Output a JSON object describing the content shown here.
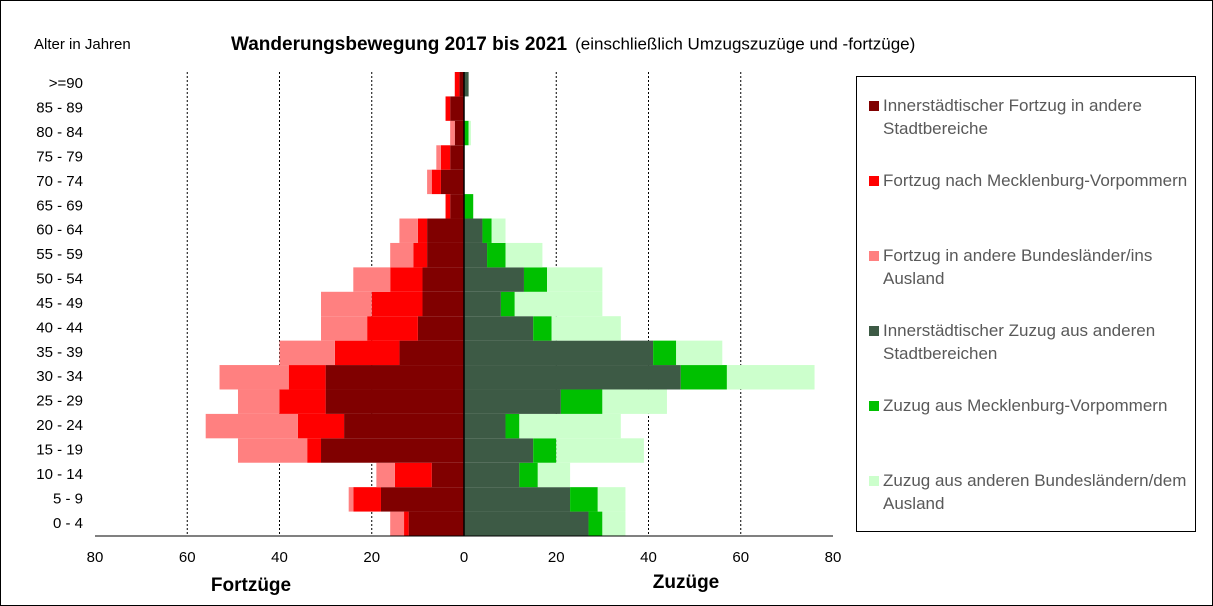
{
  "chart_data": {
    "type": "bar",
    "orientation": "horizontal",
    "stacked": true,
    "title": "Wanderungsbewegung 2017 bis 2021",
    "subtitle": "(einschließlich Umzugszuzüge und -fortzüge)",
    "y_label": "Alter in Jahren",
    "x_label_left": "Fortzüge",
    "x_label_right": "Zuzüge",
    "categories": [
      "0 - 4",
      "5 - 9",
      "10 - 14",
      "15 - 19",
      "20 - 24",
      "25 - 29",
      "30 - 34",
      "35 - 39",
      "40 - 44",
      "45 - 49",
      "50 - 54",
      "55 - 59",
      "60 - 64",
      "65 - 69",
      "70 - 74",
      "75 - 79",
      "80 - 84",
      "85 - 89",
      ">=90"
    ],
    "series": [
      {
        "name": "Innerstädtischer Fortzug in andere Stadtbereiche",
        "color": "#800000",
        "values": [
          -12,
          -18,
          -7,
          -31,
          -26,
          -30,
          -30,
          -14,
          -10,
          -9,
          -9,
          -8,
          -8,
          -3,
          -5,
          -3,
          -2,
          -3,
          -1
        ]
      },
      {
        "name": "Fortzug nach Mecklenburg-Vorpommern",
        "color": "#ff0000",
        "values": [
          -1,
          -6,
          -8,
          -3,
          -10,
          -10,
          -8,
          -14,
          -11,
          -11,
          -7,
          -3,
          -2,
          -1,
          -2,
          -2,
          0,
          -1,
          -1
        ]
      },
      {
        "name": "Fortzug in andere Bundesländer/ins Ausland",
        "color": "#ff8080",
        "values": [
          -3,
          -1,
          -4,
          -15,
          -20,
          -9,
          -15,
          -12,
          -10,
          -11,
          -8,
          -5,
          -4,
          0,
          -1,
          -1,
          -1,
          0,
          0
        ]
      },
      {
        "name": "Innerstädtischer Zuzug aus anderen Stadtbereichen",
        "color": "#3d5a45",
        "values": [
          27,
          23,
          12,
          15,
          9,
          21,
          47,
          41,
          15,
          8,
          13,
          5,
          4,
          0,
          0,
          0,
          0,
          0,
          1
        ]
      },
      {
        "name": "Zuzug aus Mecklenburg-Vorpommern",
        "color": "#00c000",
        "values": [
          3,
          6,
          4,
          5,
          3,
          9,
          10,
          5,
          4,
          3,
          5,
          4,
          2,
          2,
          0,
          0,
          1,
          0,
          0
        ]
      },
      {
        "name": "Zuzug aus anderen Bundesländern/dem Ausland",
        "color": "#ccffcc",
        "values": [
          5,
          6,
          7,
          19,
          22,
          14,
          19,
          10,
          15,
          19,
          12,
          8,
          3,
          0,
          0,
          0,
          0.5,
          0,
          0
        ]
      }
    ],
    "xlim": [
      -80,
      80
    ],
    "xticks": [
      {
        "value": -80,
        "label": "80"
      },
      {
        "value": -60,
        "label": "60"
      },
      {
        "value": -40,
        "label": "40"
      },
      {
        "value": -20,
        "label": "20"
      },
      0,
      20,
      40,
      60,
      80
    ],
    "grid": true,
    "legend": "right"
  }
}
